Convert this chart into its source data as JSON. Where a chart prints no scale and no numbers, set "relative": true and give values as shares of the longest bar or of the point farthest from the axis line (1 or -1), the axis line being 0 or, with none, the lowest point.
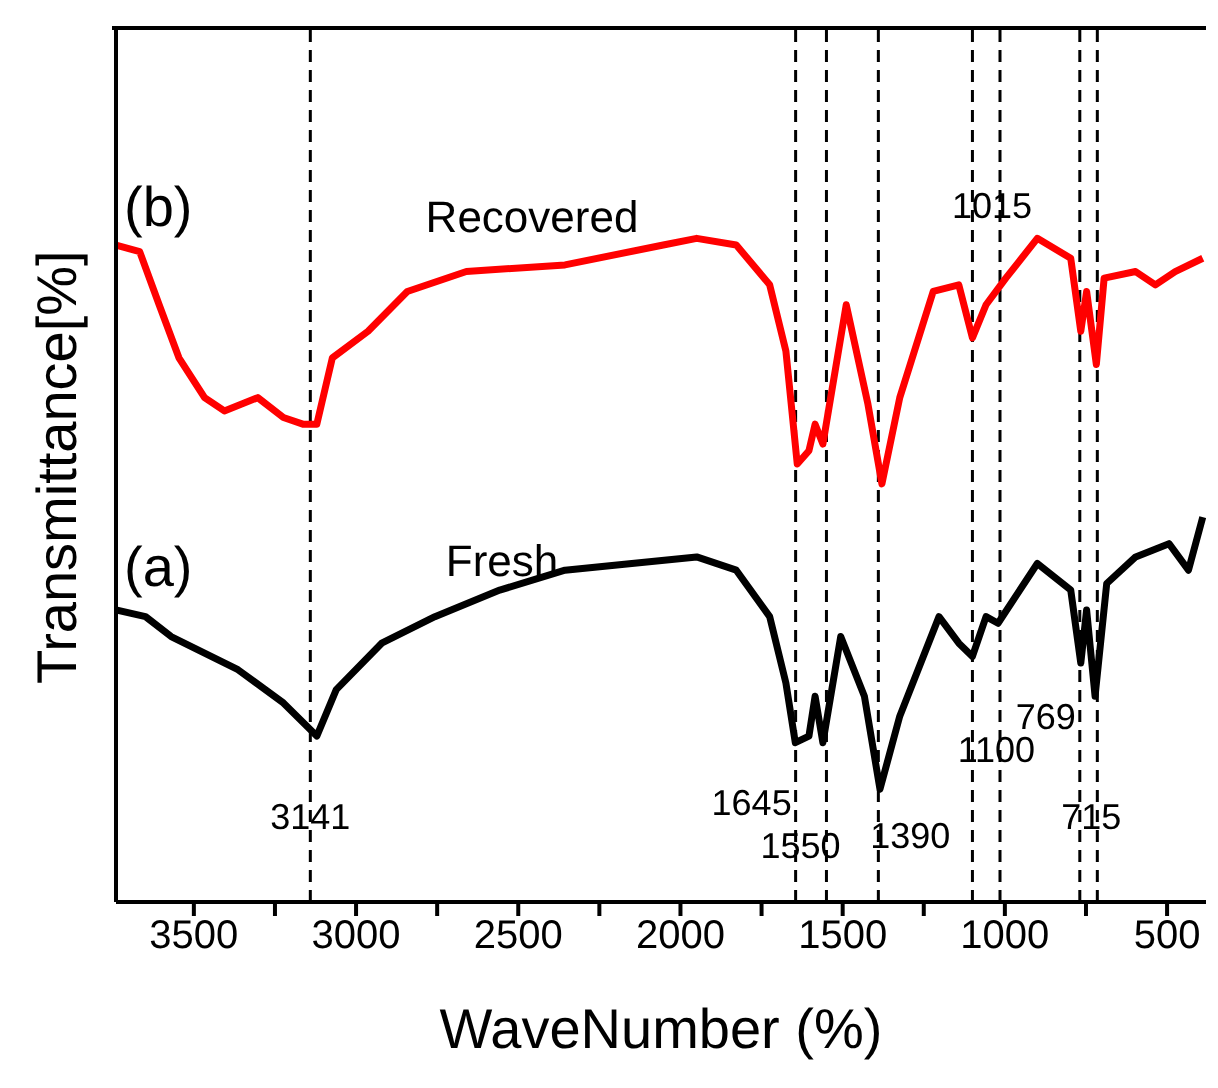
{
  "chart_data": {
    "type": "line",
    "xlabel": "WaveNumber (%)",
    "ylabel": "Transmittance[%]",
    "relative": true,
    "xlim": [
      3740,
      380
    ],
    "xticks": [
      3500,
      {
        "value": 3250,
        "label": null
      },
      3000,
      {
        "value": 2750,
        "label": null
      },
      2500,
      {
        "value": 2250,
        "label": null
      },
      2000,
      {
        "value": 1750,
        "label": null
      },
      1500,
      {
        "value": 1250,
        "label": null
      },
      1000,
      {
        "value": 750,
        "label": null
      },
      500
    ],
    "line_style": "solid",
    "marker": "none",
    "series": [
      {
        "color": "#ff0000",
        "x": [
          3740,
          3667,
          3607,
          3546,
          3467,
          3406,
          3303,
          3224,
          3164,
          3121,
          3073,
          2963,
          2842,
          2660,
          2356,
          2053,
          1950,
          1828,
          1725,
          1675,
          1640,
          1604,
          1585,
          1561,
          1489,
          1422,
          1379,
          1324,
          1221,
          1142,
          1100,
          1058,
          997,
          900,
          797,
          766,
          748,
          718,
          694,
          597,
          536,
          475,
          390
        ],
        "values": [
          0.99,
          0.98,
          0.9,
          0.82,
          0.76,
          0.74,
          0.76,
          0.73,
          0.72,
          0.72,
          0.82,
          0.86,
          0.92,
          0.95,
          0.96,
          0.99,
          1.0,
          0.99,
          0.93,
          0.83,
          0.66,
          0.68,
          0.72,
          0.69,
          0.9,
          0.75,
          0.63,
          0.76,
          0.92,
          0.93,
          0.85,
          0.9,
          0.94,
          1.0,
          0.97,
          0.86,
          0.92,
          0.81,
          0.94,
          0.95,
          0.93,
          0.95,
          0.97
        ]
      },
      {
        "color": "#000000",
        "x": [
          3740,
          3649,
          3570,
          3364,
          3224,
          3121,
          3061,
          2921,
          2757,
          2557,
          2356,
          2150,
          1950,
          1828,
          1725,
          1675,
          1646,
          1604,
          1585,
          1561,
          1506,
          1433,
          1385,
          1324,
          1203,
          1142,
          1100,
          1058,
          1021,
          900,
          797,
          766,
          748,
          722,
          686,
          597,
          494,
          434,
          390
        ],
        "values": [
          0.44,
          0.43,
          0.4,
          0.35,
          0.3,
          0.25,
          0.32,
          0.39,
          0.43,
          0.47,
          0.5,
          0.51,
          0.52,
          0.5,
          0.43,
          0.33,
          0.24,
          0.25,
          0.31,
          0.24,
          0.4,
          0.31,
          0.17,
          0.28,
          0.43,
          0.39,
          0.37,
          0.43,
          0.42,
          0.51,
          0.47,
          0.36,
          0.44,
          0.31,
          0.48,
          0.52,
          0.54,
          0.5,
          0.58
        ]
      }
    ],
    "ref_lines": [
      {
        "axis": "x",
        "value": 3141,
        "color": "#000000",
        "line_style": "dashed"
      },
      {
        "axis": "x",
        "value": 1645,
        "color": "#000000",
        "line_style": "dashed"
      },
      {
        "axis": "x",
        "value": 1550,
        "color": "#000000",
        "line_style": "dashed"
      },
      {
        "axis": "x",
        "value": 1390,
        "color": "#000000",
        "line_style": "dashed"
      },
      {
        "axis": "x",
        "value": 1100,
        "color": "#000000",
        "line_style": "dashed"
      },
      {
        "axis": "x",
        "value": 1015,
        "color": "#000000",
        "line_style": "dashed"
      },
      {
        "axis": "x",
        "value": 769,
        "color": "#000000",
        "line_style": "dashed"
      },
      {
        "axis": "x",
        "value": 715,
        "color": "#000000",
        "line_style": "dashed"
      }
    ],
    "annotations": [
      "(b)",
      "Recovered",
      "(a)",
      "Fresh",
      {
        "text": "3141",
        "x": 3141,
        "y": 0.13
      },
      {
        "text": "1645",
        "x": 1645,
        "y": 0.15
      },
      {
        "text": "1550",
        "x": 1550,
        "y": 0.085
      },
      {
        "text": "1390",
        "x": 1390,
        "y": 0.1
      },
      {
        "text": "1100",
        "x": 1100,
        "y": 0.23
      },
      {
        "text": "1015",
        "x": 1015,
        "y": 1.05
      },
      {
        "text": "769",
        "x": 769,
        "y": 0.28
      },
      {
        "text": "715",
        "x": 715,
        "y": 0.13
      }
    ]
  }
}
